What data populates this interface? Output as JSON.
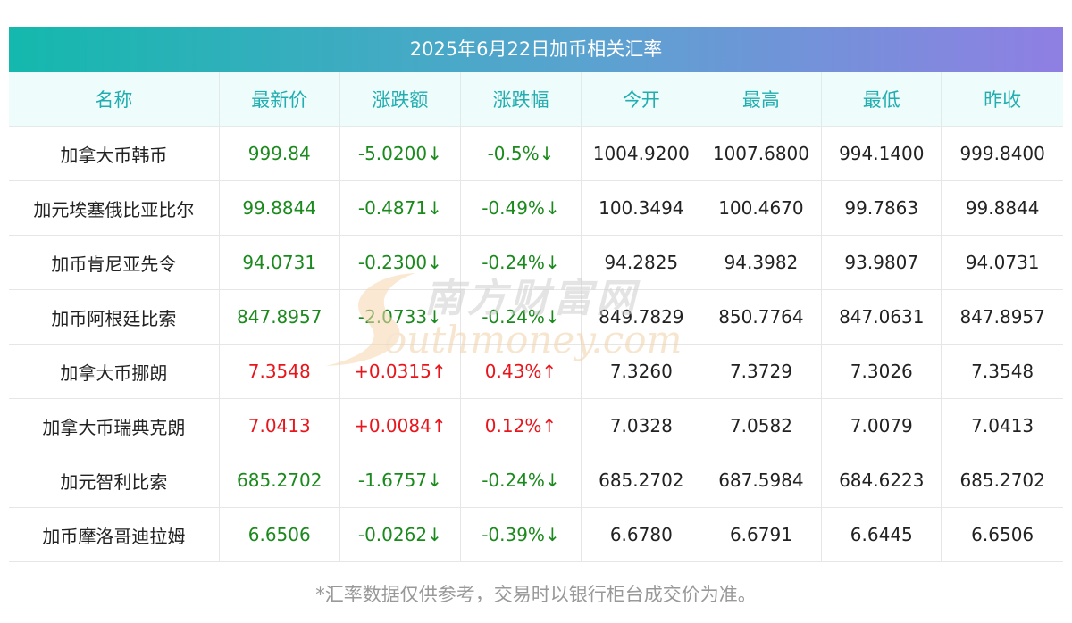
{
  "title": "2025年6月22日加币相关汇率",
  "watermark": {
    "cn": "南方财富网",
    "en": "outhmoney.com"
  },
  "columns": [
    "名称",
    "最新价",
    "涨跌额",
    "涨跌幅",
    "今开",
    "最高",
    "最低",
    "昨收"
  ],
  "rows": [
    {
      "name": "加拿大币韩币",
      "latest": "999.84",
      "change": "-5.0200",
      "pct": "-0.5%",
      "arrow": "↓",
      "dir": "down",
      "open": "1004.9200",
      "high": "1007.6800",
      "low": "994.1400",
      "close": "999.8400"
    },
    {
      "name": "加元埃塞俄比亚比尔",
      "latest": "99.8844",
      "change": "-0.4871",
      "pct": "-0.49%",
      "arrow": "↓",
      "dir": "down",
      "open": "100.3494",
      "high": "100.4670",
      "low": "99.7863",
      "close": "99.8844"
    },
    {
      "name": "加币肯尼亚先令",
      "latest": "94.0731",
      "change": "-0.2300",
      "pct": "-0.24%",
      "arrow": "↓",
      "dir": "down",
      "open": "94.2825",
      "high": "94.3982",
      "low": "93.9807",
      "close": "94.0731"
    },
    {
      "name": "加币阿根廷比索",
      "latest": "847.8957",
      "change": "-2.0733",
      "pct": "-0.24%",
      "arrow": "↓",
      "dir": "down",
      "open": "849.7829",
      "high": "850.7764",
      "low": "847.0631",
      "close": "847.8957"
    },
    {
      "name": "加拿大币挪朗",
      "latest": "7.3548",
      "change": "+0.0315",
      "pct": "0.43%",
      "arrow": "↑",
      "dir": "up",
      "open": "7.3260",
      "high": "7.3729",
      "low": "7.3026",
      "close": "7.3548"
    },
    {
      "name": "加拿大币瑞典克朗",
      "latest": "7.0413",
      "change": "+0.0084",
      "pct": "0.12%",
      "arrow": "↑",
      "dir": "up",
      "open": "7.0328",
      "high": "7.0582",
      "low": "7.0079",
      "close": "7.0413"
    },
    {
      "name": "加元智利比索",
      "latest": "685.2702",
      "change": "-1.6757",
      "pct": "-0.24%",
      "arrow": "↓",
      "dir": "down",
      "open": "685.2702",
      "high": "687.5984",
      "low": "684.6223",
      "close": "685.2702"
    },
    {
      "name": "加币摩洛哥迪拉姆",
      "latest": "6.6506",
      "change": "-0.0262",
      "pct": "-0.39%",
      "arrow": "↓",
      "dir": "down",
      "open": "6.6780",
      "high": "6.6791",
      "low": "6.6445",
      "close": "6.6506"
    }
  ],
  "footnote": "*汇率数据仅供参考，交易时以银行柜台成交价为准。",
  "colors": {
    "up": "#e8161c",
    "down": "#1b8a1d",
    "header_text": "#21aeb0",
    "header_bg": "#eefcfc",
    "banner_start": "#14b8ad",
    "banner_end": "#8f7fe3"
  }
}
